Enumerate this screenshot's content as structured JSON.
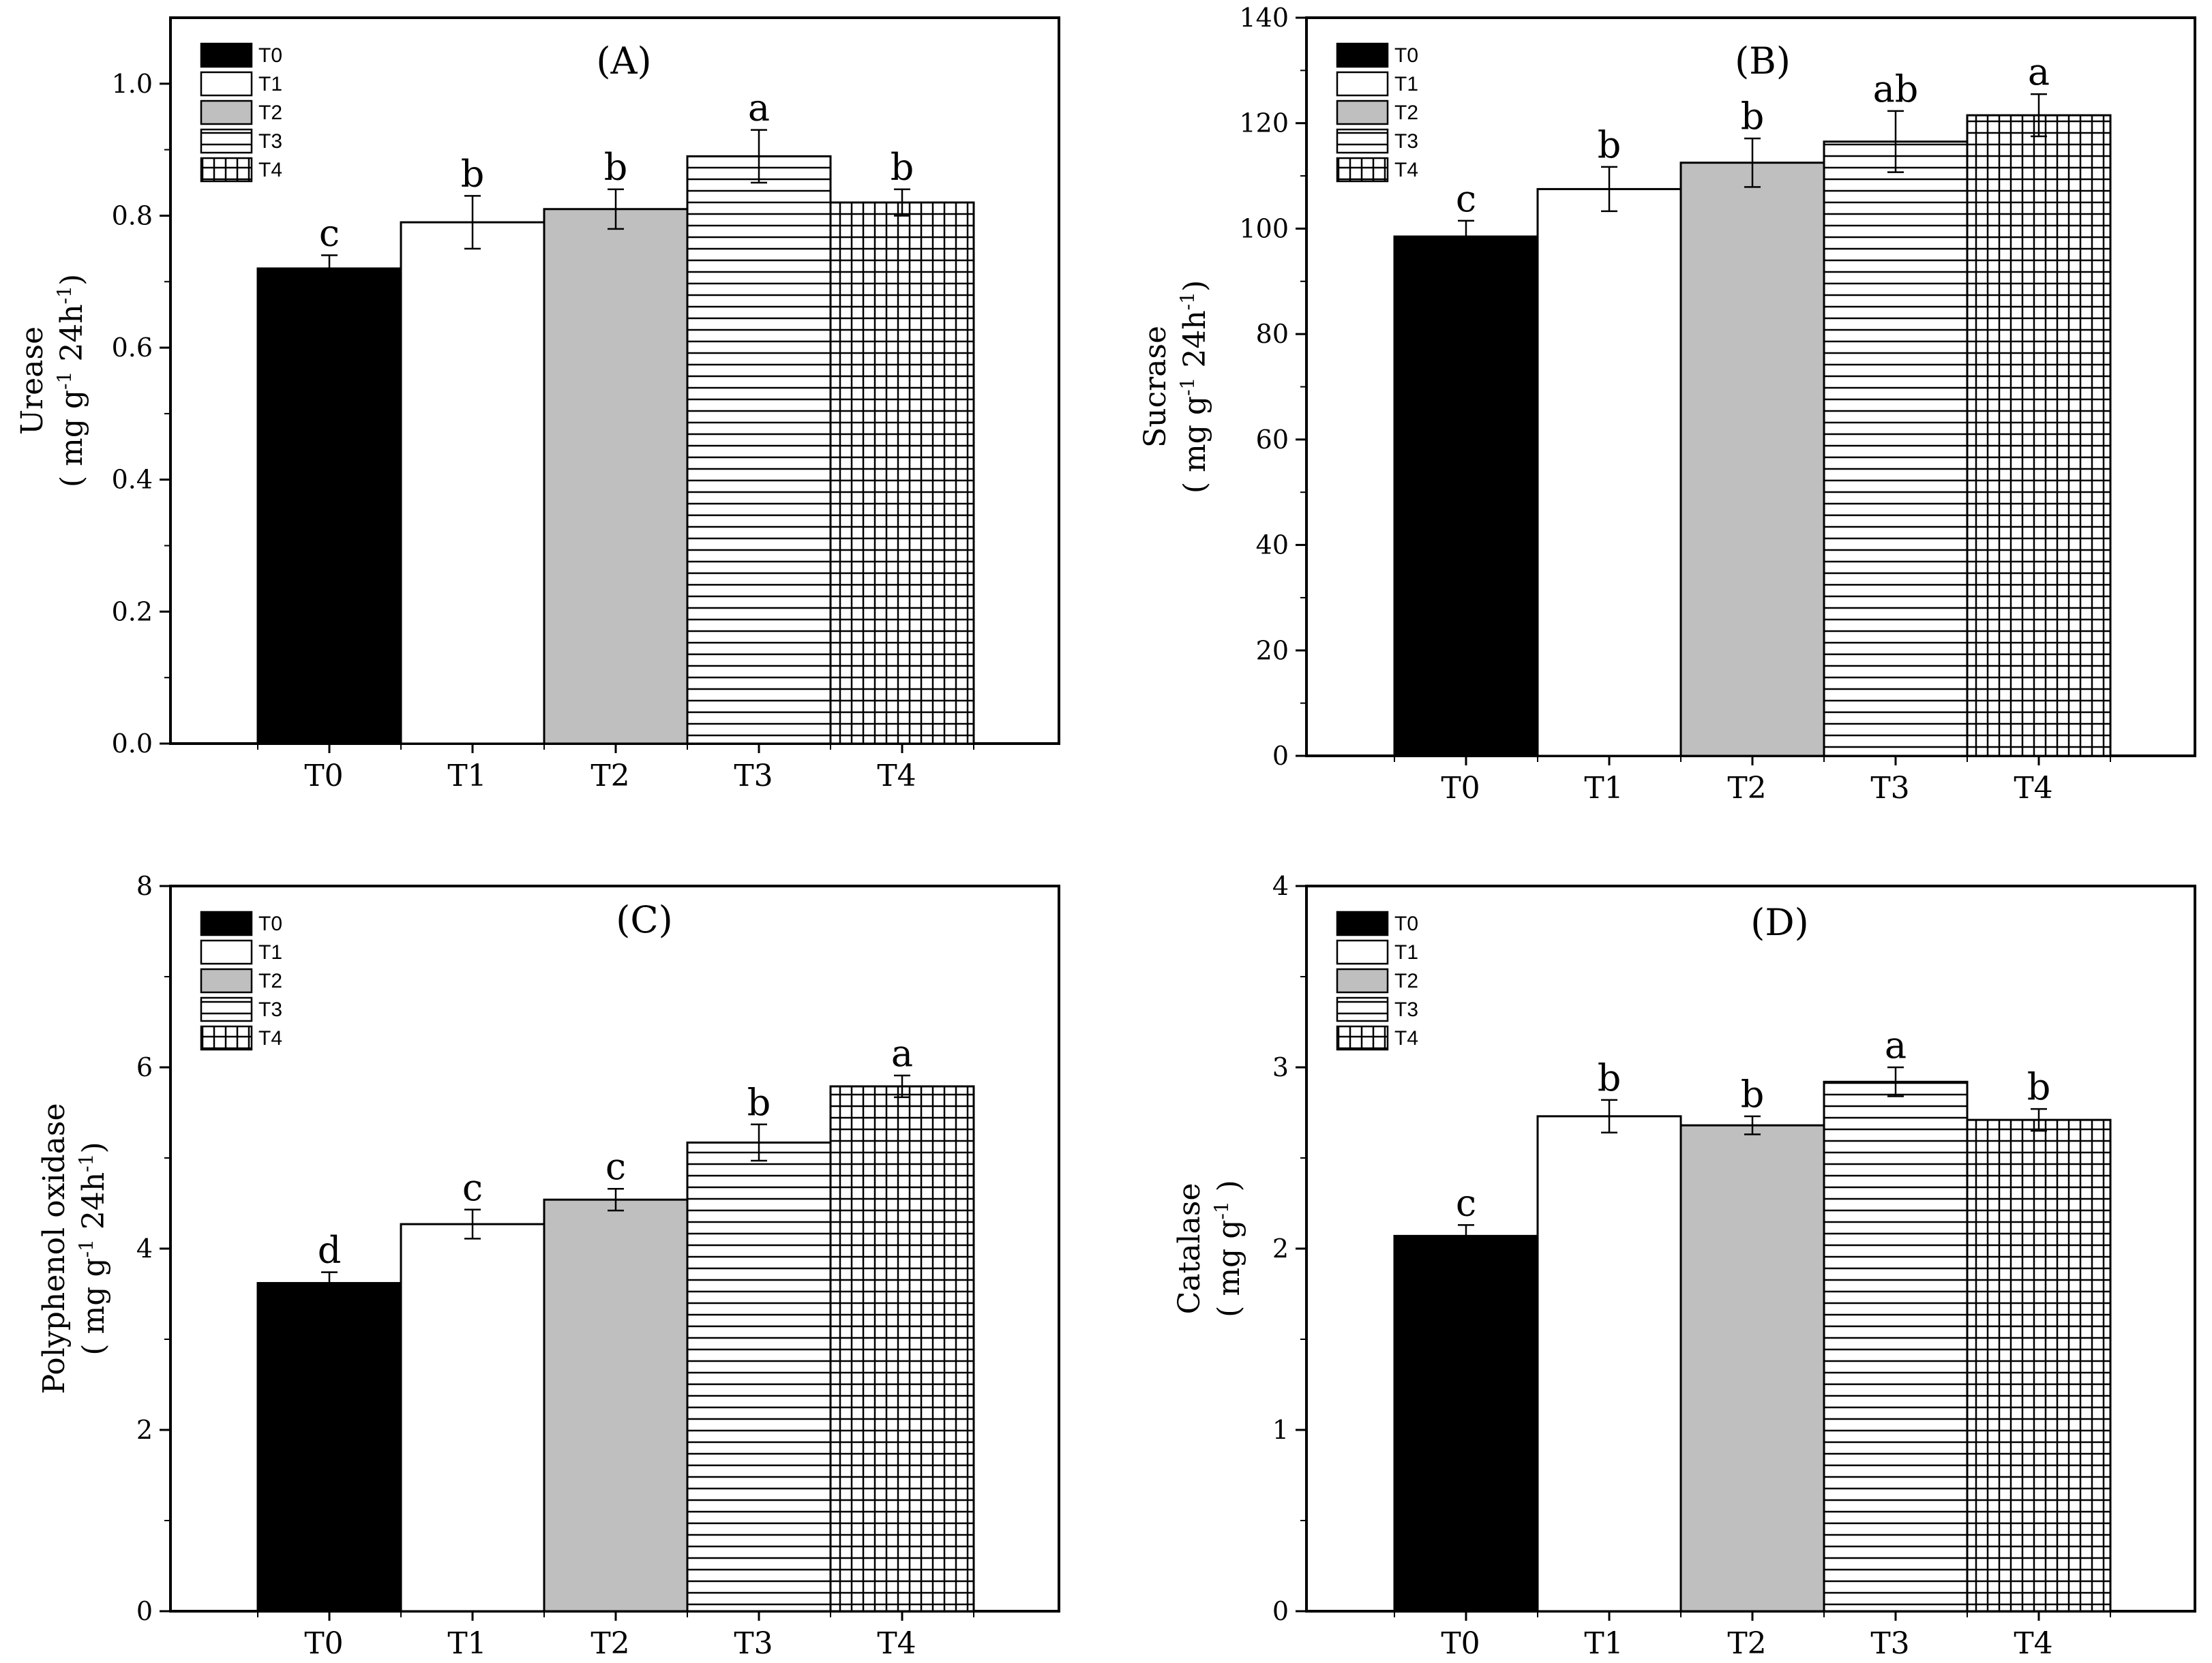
{
  "colors": {
    "t0": "#000000",
    "t1": "#ffffff",
    "t2": "#bfbfbf",
    "pattern": "#000000"
  },
  "chart_data": [
    {
      "type": "bar",
      "panel_label": "(A)",
      "title": "",
      "categories": [
        "T0",
        "T1",
        "T2",
        "T3",
        "T4"
      ],
      "values": [
        0.72,
        0.79,
        0.81,
        0.89,
        0.82
      ],
      "errors": [
        0.02,
        0.04,
        0.03,
        0.04,
        0.02
      ],
      "letters": [
        "c",
        "b",
        "b",
        "a",
        "b"
      ],
      "ylim": [
        0,
        1.1
      ],
      "yticks": [
        0.0,
        0.2,
        0.4,
        0.6,
        0.8,
        1.0
      ],
      "ytick_labels": [
        "0.0",
        "0.2",
        "0.4",
        "0.6",
        "0.8",
        "1.0"
      ],
      "ylabel_line1": "Urease",
      "ylabel_line2": "( mg g",
      "ylabel_unit2": "24h",
      "ylabel_close": ")",
      "legend": [
        "T0",
        "T1",
        "T2",
        "T3",
        "T4"
      ],
      "legend_position": "top-left",
      "xlabel": ""
    },
    {
      "type": "bar",
      "panel_label": "(B)",
      "title": "",
      "categories": [
        "T0",
        "T1",
        "T2",
        "T3",
        "T4"
      ],
      "values": [
        98.5,
        107.5,
        112.5,
        116.5,
        121.5
      ],
      "errors": [
        3.0,
        4.2,
        4.6,
        5.8,
        4.0
      ],
      "letters": [
        "c",
        "b",
        "b",
        "ab",
        "a"
      ],
      "ylim": [
        0,
        140
      ],
      "yticks": [
        0,
        20,
        40,
        60,
        80,
        100,
        120,
        140
      ],
      "ytick_labels": [
        "0",
        "20",
        "40",
        "60",
        "80",
        "100",
        "120",
        "140"
      ],
      "ylabel_line1": "Sucrase",
      "ylabel_line2": "( mg g",
      "ylabel_unit2": "24h",
      "ylabel_close": ")",
      "legend": [
        "T0",
        "T1",
        "T2",
        "T3",
        "T4"
      ],
      "legend_position": "top-left",
      "xlabel": ""
    },
    {
      "type": "bar",
      "panel_label": "(C)",
      "title": "",
      "categories": [
        "T0",
        "T1",
        "T2",
        "T3",
        "T4"
      ],
      "values": [
        3.62,
        4.27,
        4.54,
        5.17,
        5.79
      ],
      "errors": [
        0.12,
        0.16,
        0.12,
        0.2,
        0.12
      ],
      "letters": [
        "d",
        "c",
        "c",
        "b",
        "a"
      ],
      "ylim": [
        0,
        8
      ],
      "yticks": [
        0,
        2,
        4,
        6,
        8
      ],
      "ytick_labels": [
        "0",
        "2",
        "4",
        "6",
        "8"
      ],
      "ylabel_line1": "Polyphenol oxidase",
      "ylabel_line2": "( mg g",
      "ylabel_unit2": "24h",
      "ylabel_close": ")",
      "legend": [
        "T0",
        "T1",
        "T2",
        "T3",
        "T4"
      ],
      "legend_position": "top-left",
      "xlabel": ""
    },
    {
      "type": "bar",
      "panel_label": "(D)",
      "title": "",
      "categories": [
        "T0",
        "T1",
        "T2",
        "T3",
        "T4"
      ],
      "values": [
        2.07,
        2.73,
        2.68,
        2.92,
        2.71
      ],
      "errors": [
        0.06,
        0.09,
        0.05,
        0.08,
        0.06
      ],
      "letters": [
        "c",
        "b",
        "b",
        "a",
        "b"
      ],
      "ylim": [
        0,
        4
      ],
      "yticks": [
        0,
        1,
        2,
        3,
        4
      ],
      "ytick_labels": [
        "0",
        "1",
        "2",
        "3",
        "4"
      ],
      "ylabel_line1": "Catalase",
      "ylabel_line2": "( mg g",
      "ylabel_unit2": "",
      "ylabel_close": ")",
      "legend": [
        "T0",
        "T1",
        "T2",
        "T3",
        "T4"
      ],
      "legend_position": "top-left",
      "xlabel": ""
    }
  ]
}
